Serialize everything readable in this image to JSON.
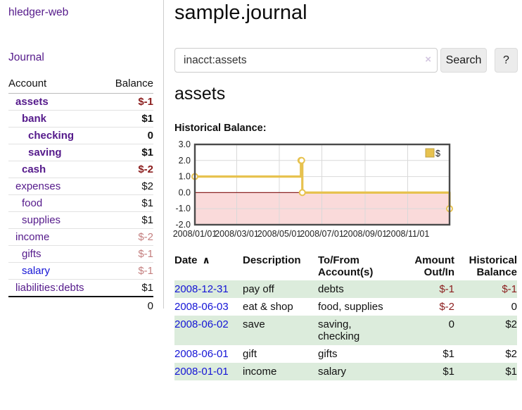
{
  "app": {
    "brand": "hledger-web",
    "nav_journal": "Journal"
  },
  "colors": {
    "link_purple": "#551a8b",
    "link_blue": "#1414d6",
    "negative_strong": "#8b1d1d",
    "negative_soft": "#c47f7f",
    "row_stripe_green": "#dcecdc",
    "chart_line_gold": "#e7c24f",
    "chart_negative_fill": "#fadada",
    "chart_zero_line": "#8b2222"
  },
  "sidebar": {
    "header": {
      "account": "Account",
      "balance": "Balance"
    },
    "rows": [
      {
        "account": "assets",
        "balance": "$-1",
        "indent": 0,
        "in_filter": true,
        "balance_tone": "neg-strong",
        "link_tone": "purple"
      },
      {
        "account": "bank",
        "balance": "$1",
        "indent": 1,
        "in_filter": true,
        "balance_tone": "pos",
        "link_tone": "purple"
      },
      {
        "account": "checking",
        "balance": "0",
        "indent": 2,
        "in_filter": true,
        "balance_tone": "pos",
        "link_tone": "purple"
      },
      {
        "account": "saving",
        "balance": "$1",
        "indent": 2,
        "in_filter": true,
        "balance_tone": "pos",
        "link_tone": "purple"
      },
      {
        "account": "cash",
        "balance": "$-2",
        "indent": 1,
        "in_filter": true,
        "balance_tone": "neg-strong",
        "link_tone": "purple"
      },
      {
        "account": "expenses",
        "balance": "$2",
        "indent": 0,
        "in_filter": false,
        "balance_tone": "pos",
        "link_tone": "purple"
      },
      {
        "account": "food",
        "balance": "$1",
        "indent": 1,
        "in_filter": false,
        "balance_tone": "pos",
        "link_tone": "purple"
      },
      {
        "account": "supplies",
        "balance": "$1",
        "indent": 1,
        "in_filter": false,
        "balance_tone": "pos",
        "link_tone": "purple"
      },
      {
        "account": "income",
        "balance": "$-2",
        "indent": 0,
        "in_filter": false,
        "balance_tone": "neg-soft",
        "link_tone": "purple"
      },
      {
        "account": "gifts",
        "balance": "$-1",
        "indent": 1,
        "in_filter": false,
        "balance_tone": "neg-soft",
        "link_tone": "purple"
      },
      {
        "account": "salary",
        "balance": "$-1",
        "indent": 1,
        "in_filter": false,
        "balance_tone": "neg-soft",
        "link_tone": "blue"
      },
      {
        "account": "liabilities:debts",
        "balance": "$1",
        "indent": 0,
        "in_filter": false,
        "balance_tone": "pos",
        "link_tone": "purple"
      }
    ],
    "total": "0"
  },
  "main": {
    "title": "sample.journal",
    "search": {
      "value": "inacct:assets",
      "clear_icon": "×",
      "button_label": "Search",
      "help_label": "?"
    },
    "account_heading": "assets",
    "chart_label": "Historical Balance:"
  },
  "chart_data": {
    "type": "line",
    "title": "Historical Balance",
    "series": [
      {
        "name": "$",
        "step": true,
        "color": "#e7c24f",
        "points": [
          [
            "2008-01-01",
            1
          ],
          [
            "2008-06-01",
            2
          ],
          [
            "2008-06-02",
            2
          ],
          [
            "2008-06-03",
            0
          ],
          [
            "2008-12-31",
            -1
          ]
        ]
      }
    ],
    "x_domain": [
      "2008-01-01",
      "2008-12-31"
    ],
    "ylim": [
      -2,
      3
    ],
    "yticks": [
      3,
      2,
      1,
      0,
      -1,
      -2
    ],
    "ytick_labels": [
      "3.0",
      "2.0",
      "1.0",
      "0.0",
      "-1.0",
      "-2.0"
    ],
    "xtick_labels": [
      "2008/01/01",
      "2008/03/01",
      "2008/05/01",
      "2008/07/01",
      "2008/09/01",
      "2008/11/01"
    ],
    "grid": true,
    "legend_position": "top-right",
    "negative_fill": "#fadada",
    "zero_line_color": "#8b2222"
  },
  "register": {
    "headers": [
      {
        "label": "Date",
        "sort_icon": "∧",
        "align": "left"
      },
      {
        "label": "Description",
        "align": "left"
      },
      {
        "label": "To/From Account(s)",
        "align": "left"
      },
      {
        "label": "Amount Out/In",
        "align": "right"
      },
      {
        "label": "Historical Balance",
        "align": "right"
      }
    ],
    "rows": [
      {
        "date": "2008-12-31",
        "description": "pay off",
        "accounts": "debts",
        "amount": "$-1",
        "amount_neg": true,
        "balance": "$-1",
        "balance_neg": true
      },
      {
        "date": "2008-06-03",
        "description": "eat & shop",
        "accounts": "food, supplies",
        "amount": "$-2",
        "amount_neg": true,
        "balance": "0",
        "balance_neg": false
      },
      {
        "date": "2008-06-02",
        "description": "save",
        "accounts": "saving, checking",
        "amount": "0",
        "amount_neg": false,
        "balance": "$2",
        "balance_neg": false
      },
      {
        "date": "2008-06-01",
        "description": "gift",
        "accounts": "gifts",
        "amount": "$1",
        "amount_neg": false,
        "balance": "$2",
        "balance_neg": false
      },
      {
        "date": "2008-01-01",
        "description": "income",
        "accounts": "salary",
        "amount": "$1",
        "amount_neg": false,
        "balance": "$1",
        "balance_neg": false
      }
    ]
  }
}
